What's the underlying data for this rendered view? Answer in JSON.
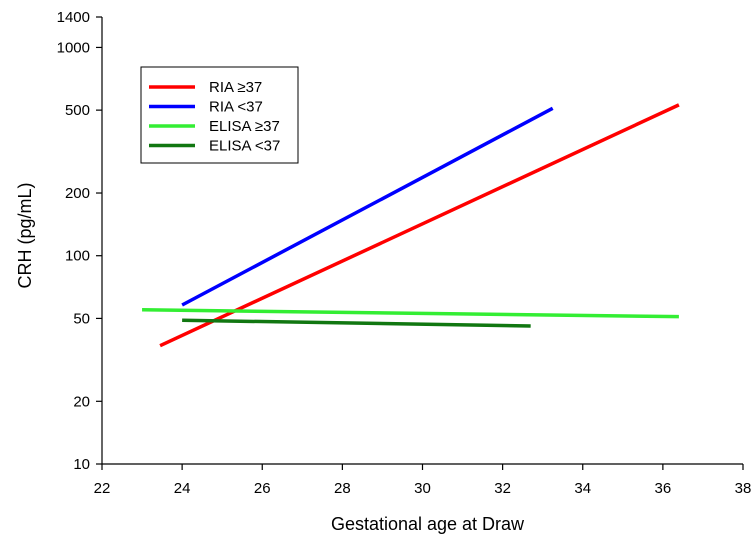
{
  "chart_data": {
    "type": "line",
    "title": "",
    "xlabel": "Gestational age at Draw",
    "ylabel": "CRH (pg/mL)",
    "xlim": [
      22,
      38
    ],
    "ylim": [
      10,
      1400
    ],
    "yscale": "log",
    "x_ticks": [
      22,
      24,
      26,
      28,
      30,
      32,
      34,
      36,
      38
    ],
    "x_tick_labels": [
      "22",
      "24",
      "26",
      "28",
      "30",
      "32",
      "34",
      "36",
      "38"
    ],
    "y_ticks": [
      10,
      20,
      50,
      100,
      200,
      500,
      1000,
      1400
    ],
    "y_tick_labels": [
      "10",
      "20",
      "50",
      "100",
      "200",
      "500",
      "1000",
      "1400"
    ],
    "grid": false,
    "legend_position": "top-left",
    "series": [
      {
        "name": "RIA ≥37",
        "color": "#ff0000",
        "x": [
          23.45,
          36.4
        ],
        "y": [
          37,
          530
        ]
      },
      {
        "name": "RIA <37",
        "color": "#0000ff",
        "x": [
          24.0,
          33.25
        ],
        "y": [
          58,
          510
        ]
      },
      {
        "name": "ELISA ≥37",
        "color": "#33ee33",
        "x": [
          23.0,
          36.4
        ],
        "y": [
          55,
          51
        ]
      },
      {
        "name": "ELISA <37",
        "color": "#117711",
        "x": [
          24.0,
          32.7
        ],
        "y": [
          49,
          46
        ]
      }
    ]
  }
}
